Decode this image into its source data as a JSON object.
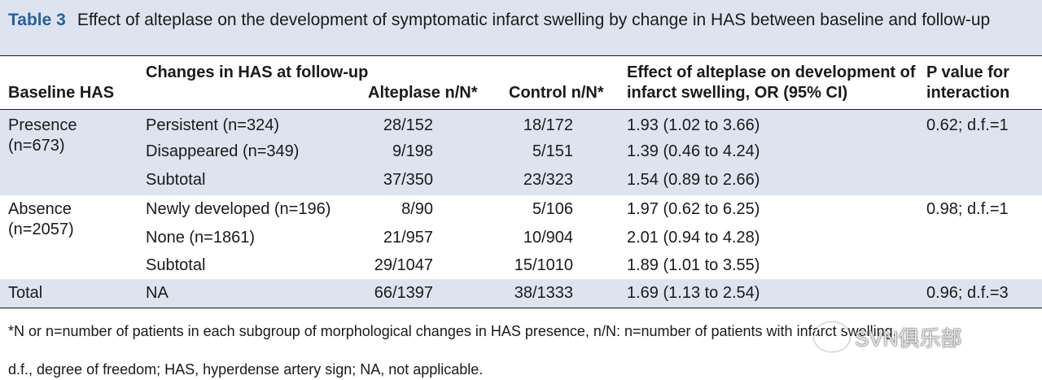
{
  "title": {
    "label": "Table 3",
    "text": "Effect of alteplase on the development of symptomatic infarct swelling by change in HAS between baseline and follow-up"
  },
  "columns": [
    "Baseline HAS",
    "Changes in HAS at follow-up",
    "Alteplase n/N*",
    "Control n/N*",
    "Effect of alteplase on development of infarct swelling, OR (95% CI)",
    "P value for interaction"
  ],
  "groups": [
    {
      "baseline": "Presence (n=673)",
      "p_value": "0.62; d.f.=1",
      "rows": [
        {
          "change": "Persistent (n=324)",
          "alteplase": "28/152",
          "control": "18/172",
          "effect": "1.93 (1.02 to 3.66)"
        },
        {
          "change": "Disappeared (n=349)",
          "alteplase": "9/198",
          "control": "5/151",
          "effect": "1.39 (0.46 to 4.24)"
        },
        {
          "change": "Subtotal",
          "alteplase": "37/350",
          "control": "23/323",
          "effect": "1.54 (0.89 to 2.66)"
        }
      ]
    },
    {
      "baseline": "Absence (n=2057)",
      "p_value": "0.98; d.f.=1",
      "rows": [
        {
          "change": "Newly developed (n=196)",
          "alteplase": "8/90",
          "control": "5/106",
          "effect": "1.97 (0.62 to 6.25)"
        },
        {
          "change": "None (n=1861)",
          "alteplase": "21/957",
          "control": "10/904",
          "effect": "2.01 (0.94 to 4.28)"
        },
        {
          "change": "Subtotal",
          "alteplase": "29/1047",
          "control": "15/1010",
          "effect": "1.89 (1.01 to 3.55)"
        }
      ]
    }
  ],
  "total": {
    "baseline": "Total",
    "change": "NA",
    "alteplase": "66/1397",
    "control": "38/1333",
    "effect": "1.69 (1.13 to 2.54)",
    "p_value": "0.96; d.f.=3"
  },
  "footnotes": [
    "*N or n=number of patients in each subgroup of morphological changes in HAS presence, n/N: n=number of patients with infarct swelling.",
    "d.f., degree of freedom; HAS, hyperdense artery sign; NA, not applicable."
  ],
  "watermark": "SVN俱乐部",
  "colors": {
    "band": "#dde4ef",
    "label": "#2a5f9e",
    "text": "#1a1a1a"
  }
}
